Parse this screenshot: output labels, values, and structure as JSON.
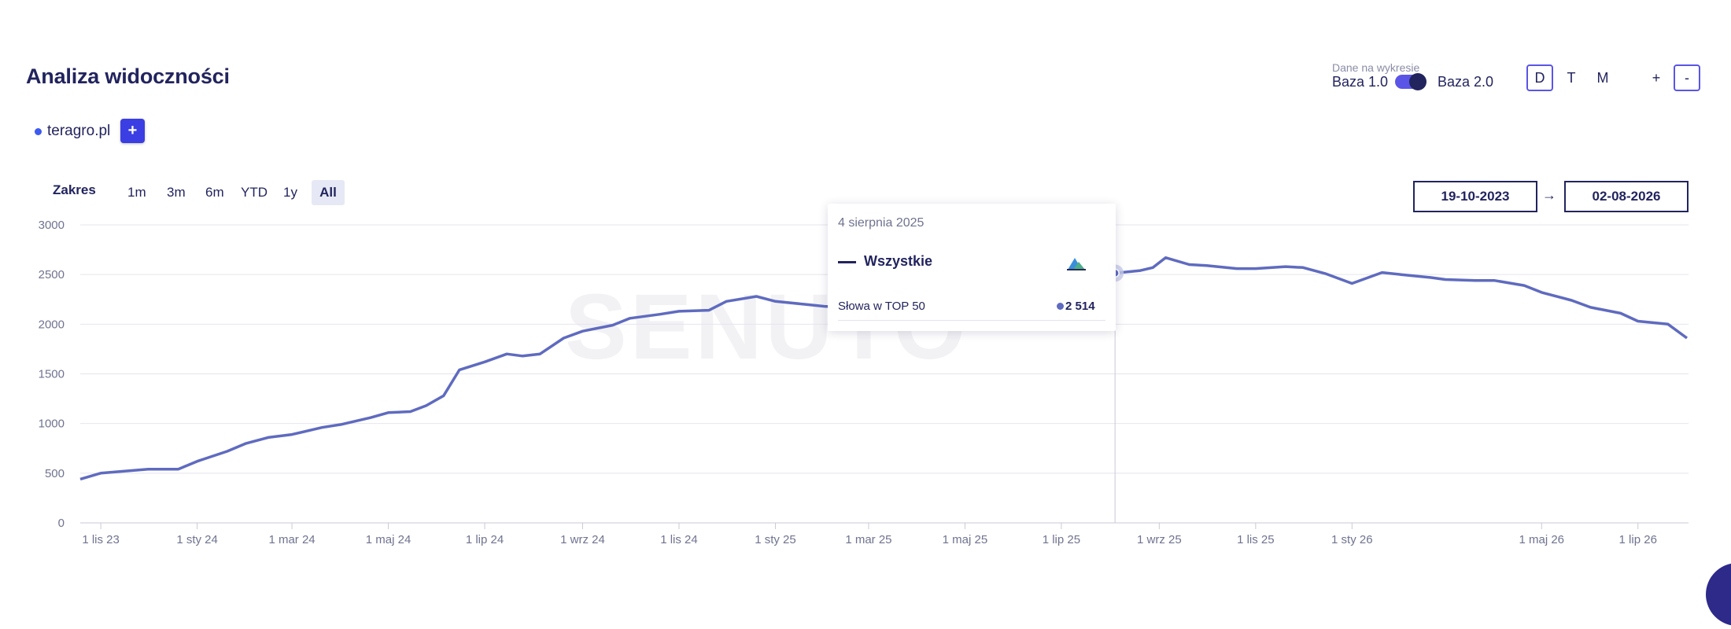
{
  "header": {
    "title": "Analiza widoczności",
    "data_caption": "Dane na wykresie",
    "base_left": "Baza 1.0",
    "base_right": "Baza 2.0",
    "periods": [
      "D",
      "T",
      "M"
    ],
    "active_period": "D",
    "zoom_in": "+",
    "zoom_out": "-"
  },
  "domains": [
    {
      "name": "teragro.pl",
      "color": "#3d5af1"
    }
  ],
  "add_label": "+",
  "range": {
    "label": "Zakres",
    "options": [
      "1m",
      "3m",
      "6m",
      "YTD",
      "1y",
      "All"
    ],
    "active": "All",
    "date_from": "19-10-2023",
    "arrow": "→",
    "date_to": "02-08-2026"
  },
  "watermark": "SENUTO",
  "tooltip": {
    "date": "4 sierpnia 2025",
    "series": "Wszystkie",
    "metric": "Słowa w TOP 50",
    "value": "2 514"
  },
  "chart_data": {
    "type": "line",
    "title": "",
    "xlabel": "",
    "ylabel": "",
    "ylim": [
      0,
      3000
    ],
    "yticks": [
      0,
      500,
      1000,
      1500,
      2000,
      2500,
      3000
    ],
    "xticks": [
      "1 lis 23",
      "1 sty 24",
      "1 mar 24",
      "1 maj 24",
      "1 lip 24",
      "1 wrz 24",
      "1 lis 24",
      "1 sty 25",
      "1 mar 25",
      "1 maj 25",
      "1 lip 25",
      "1 wrz 25",
      "1 lis 25",
      "1 sty 26",
      "1 maj 26",
      "1 lip 26"
    ],
    "grid": true,
    "color": "#5f6bbf",
    "highlight": {
      "x": "2025-08-04",
      "y": 2514
    },
    "series": [
      {
        "x": [
          "2023-10-19",
          "2023-11-01",
          "2023-12-01",
          "2023-12-20",
          "2024-01-01",
          "2024-01-20",
          "2024-02-01",
          "2024-02-15",
          "2024-03-01",
          "2024-03-20",
          "2024-04-01",
          "2024-04-20",
          "2024-05-01",
          "2024-05-15",
          "2024-05-25",
          "2024-06-05",
          "2024-06-15",
          "2024-07-01",
          "2024-07-15",
          "2024-07-25",
          "2024-08-05",
          "2024-08-20",
          "2024-09-01",
          "2024-09-20",
          "2024-10-01",
          "2024-10-20",
          "2024-11-01",
          "2024-11-20",
          "2024-12-01",
          "2024-12-20",
          "2025-01-01",
          "2025-01-20",
          "2025-02-01",
          "2025-03-01",
          "2025-03-20",
          "2025-04-01",
          "2025-05-01",
          "2025-06-01",
          "2025-06-20",
          "2025-07-01",
          "2025-07-20",
          "2025-08-04",
          "2025-08-20",
          "2025-08-28",
          "2025-09-05",
          "2025-09-20",
          "2025-10-01",
          "2025-10-20",
          "2025-11-01",
          "2025-11-20",
          "2025-12-01",
          "2025-12-15",
          "2026-01-01",
          "2026-01-20",
          "2026-02-01",
          "2026-02-20",
          "2026-03-01",
          "2026-03-20",
          "2026-04-01",
          "2026-04-20",
          "2026-05-01",
          "2026-05-20",
          "2026-06-01",
          "2026-06-20",
          "2026-07-01",
          "2026-07-20",
          "2026-08-01"
        ],
        "values": [
          440,
          500,
          540,
          540,
          620,
          720,
          800,
          860,
          890,
          960,
          990,
          1060,
          1110,
          1120,
          1180,
          1280,
          1540,
          1620,
          1700,
          1680,
          1700,
          1860,
          1930,
          1990,
          2060,
          2100,
          2130,
          2140,
          2230,
          2280,
          2230,
          2200,
          2180,
          2160,
          2210,
          2250,
          2260,
          2280,
          2290,
          2250,
          2330,
          2514,
          2540,
          2570,
          2670,
          2600,
          2590,
          2560,
          2560,
          2580,
          2570,
          2510,
          2410,
          2520,
          2500,
          2470,
          2450,
          2440,
          2440,
          2390,
          2320,
          2240,
          2170,
          2110,
          2030,
          2000,
          1860
        ]
      }
    ]
  }
}
